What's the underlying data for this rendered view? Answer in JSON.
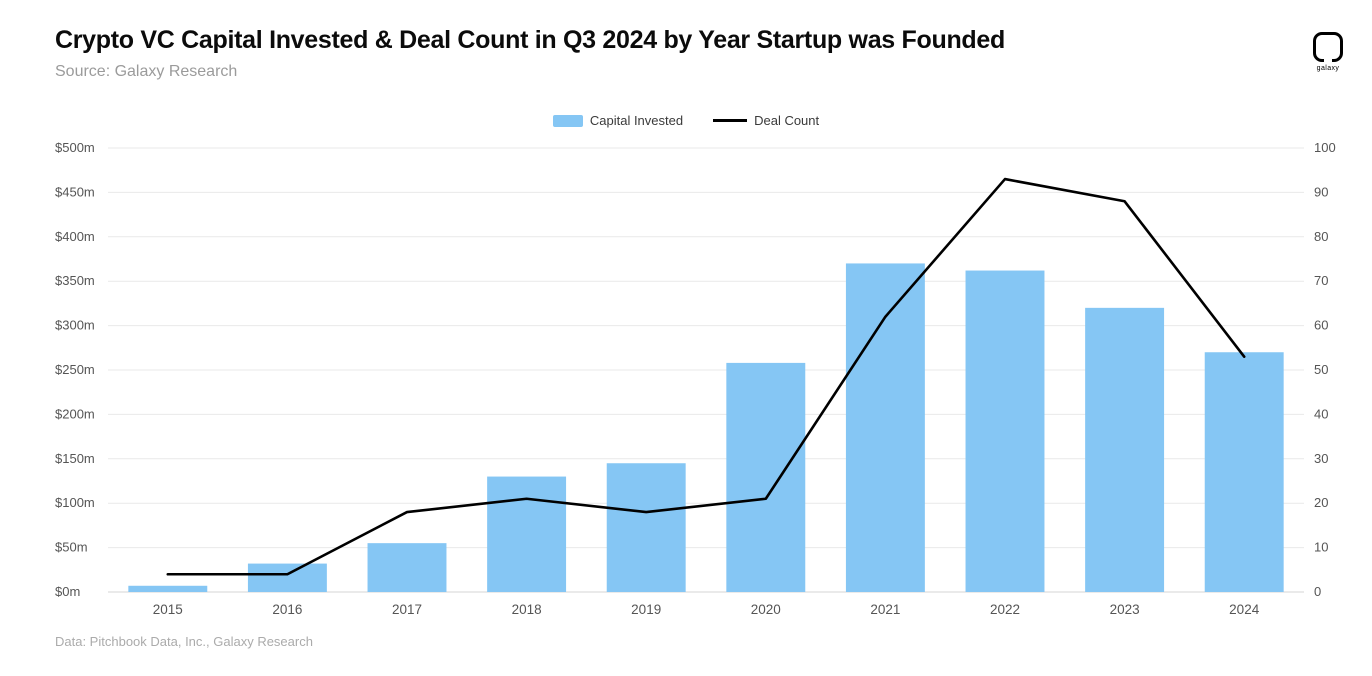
{
  "header": {
    "title": "Crypto VC Capital Invested & Deal Count in Q3 2024 by Year Startup was Founded",
    "subtitle": "Source: Galaxy Research",
    "logo_text": "galaxy"
  },
  "footer": {
    "source_note": "Data: Pitchbook Data, Inc., Galaxy Research"
  },
  "chart_data": {
    "type": "bar",
    "subtype": "bar+line dual axis",
    "title": "Crypto VC Capital Invested & Deal Count in Q3 2024 by Year Startup was Founded",
    "categories": [
      "2015",
      "2016",
      "2017",
      "2018",
      "2019",
      "2020",
      "2021",
      "2022",
      "2023",
      "2024"
    ],
    "series": [
      {
        "name": "Capital Invested",
        "type": "bar",
        "axis": "left",
        "color": "#85C6F4",
        "values": [
          7,
          32,
          55,
          130,
          145,
          258,
          370,
          362,
          320,
          270
        ]
      },
      {
        "name": "Deal Count",
        "type": "line",
        "axis": "right",
        "color": "#000000",
        "values": [
          4,
          4,
          18,
          21,
          18,
          21,
          62,
          93,
          88,
          53
        ]
      }
    ],
    "left_axis": {
      "min": 0,
      "max": 500,
      "step": 50,
      "tick_suffix": "m",
      "tick_prefix": "$",
      "tick_labels": [
        "$0m",
        "$50m",
        "$100m",
        "$150m",
        "$200m",
        "$250m",
        "$300m",
        "$350m",
        "$400m",
        "$450m",
        "$500m"
      ]
    },
    "right_axis": {
      "min": 0,
      "max": 100,
      "step": 10,
      "tick_labels": [
        "0",
        "10",
        "20",
        "30",
        "40",
        "50",
        "60",
        "70",
        "80",
        "90",
        "100"
      ]
    },
    "grid": true,
    "legend_position": "top-center",
    "colors": {
      "bar": "#85C6F4",
      "line": "#000000",
      "grid": "#e9e9e9",
      "axis_text": "#555555"
    }
  }
}
